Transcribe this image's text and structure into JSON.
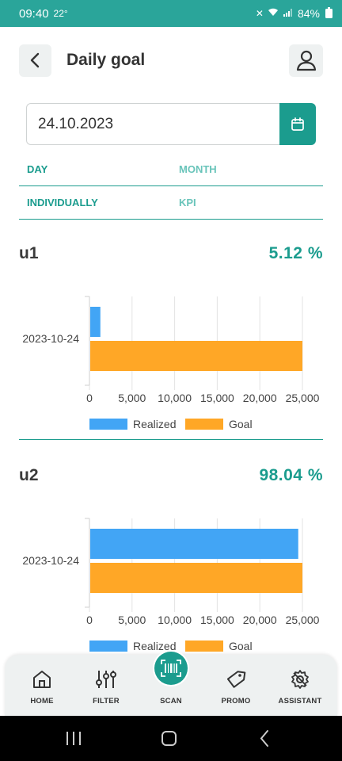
{
  "status_bar": {
    "time": "09:40",
    "temp": "22°",
    "battery": "84%"
  },
  "header": {
    "title": "Daily goal",
    "back_icon": "chevron-left-icon",
    "profile_icon": "user-icon"
  },
  "date_picker": {
    "value": "24.10.2023",
    "icon": "calendar-icon"
  },
  "tabs": {
    "row1": [
      {
        "label": "DAY",
        "active": true
      },
      {
        "label": "MONTH",
        "active": false
      }
    ],
    "row2": [
      {
        "label": "INDIVIDUALLY",
        "active": true
      },
      {
        "label": "KPI",
        "active": false
      }
    ]
  },
  "colors": {
    "accent": "#1b9c8e",
    "realized": "#42a5f5",
    "goal": "#ffa726"
  },
  "sections": [
    {
      "name": "u1",
      "percent": "5.12 %"
    },
    {
      "name": "u2",
      "percent": "98.04 %"
    }
  ],
  "chart_data": [
    {
      "type": "bar",
      "orientation": "horizontal",
      "categories": [
        "2023-10-24"
      ],
      "series": [
        {
          "name": "Realized",
          "values": [
            1280
          ]
        },
        {
          "name": "Goal",
          "values": [
            25000
          ]
        }
      ],
      "xlim": [
        0,
        25000
      ],
      "xticks": [
        "0",
        "5,000",
        "10,000",
        "15,000",
        "20,000",
        "25,000"
      ],
      "legend": "bottom",
      "grid": true
    },
    {
      "type": "bar",
      "orientation": "horizontal",
      "categories": [
        "2023-10-24"
      ],
      "series": [
        {
          "name": "Realized",
          "values": [
            24510
          ]
        },
        {
          "name": "Goal",
          "values": [
            25000
          ]
        }
      ],
      "xlim": [
        0,
        25000
      ],
      "xticks": [
        "0",
        "5,000",
        "10,000",
        "15,000",
        "20,000",
        "25,000"
      ],
      "legend": "bottom",
      "grid": true
    }
  ],
  "bottom_nav": [
    {
      "label": "HOME",
      "icon": "home-icon"
    },
    {
      "label": "FILTER",
      "icon": "filter-icon"
    },
    {
      "label": "SCAN",
      "icon": "barcode-icon"
    },
    {
      "label": "PROMO",
      "icon": "tag-icon"
    },
    {
      "label": "ASSISTANT",
      "icon": "gear-icon"
    }
  ]
}
